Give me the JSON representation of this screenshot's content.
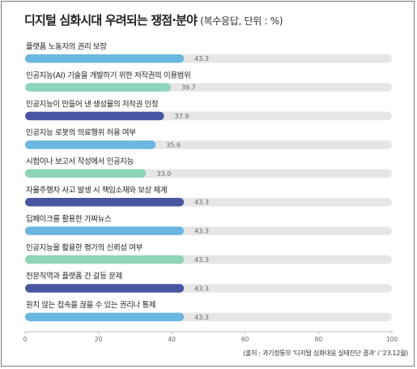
{
  "title": "디지털 심화시대 우려되는 쟁점·분야",
  "subtitle": "(복수응답, 단위 : %)",
  "source": "(출처 : 과기정통부 '디지털 심화대응 실태진단 결과' / '23.12월)",
  "colors": {
    "track": "#e6e6e6",
    "blue": "#6ab7e0",
    "green": "#8dd4b8",
    "navy": "#4a55a2"
  },
  "chart_data": {
    "type": "bar",
    "orientation": "horizontal",
    "title": "디지털 심화시대 우려되는 쟁점·분야",
    "subtitle": "(복수응답, 단위 : %)",
    "xlim": [
      0,
      100
    ],
    "xticks": [
      0,
      20,
      40,
      60,
      80,
      100
    ],
    "categories": [
      "플랫폼 노동자의 권리 보장",
      "인공지능(AI) 기술을 개발하기 위한 저작권의 이용범위",
      "인공지능이 만들어 낸 생성물의 저작권 인정",
      "인공지능 로봇의 의료행위 허용 여부",
      "시험이나 보고서 작성에서 인공지능",
      "자율주행차 사고 발생 시 책임소재와 보상 체계",
      "딥페이크를 활용한 가짜뉴스",
      "인공지능을 활용한 평가의 신뢰성 여부",
      "전문직역과 플랫폼 간 갈등 문제",
      "원치 않는 접속을 끊을 수 있는 권리나 통제"
    ],
    "values": [
      43.3,
      39.7,
      37.9,
      35.6,
      33.0,
      43.3,
      43.3,
      43.3,
      43.3,
      43.3
    ],
    "value_labels": [
      "43.3",
      "39.7",
      "37.9",
      "35.6",
      "33.0",
      "43.3",
      "43.3",
      "43.3",
      "43.3",
      "43.3"
    ],
    "bar_colors": [
      "blue",
      "green",
      "navy",
      "blue",
      "green",
      "navy",
      "blue",
      "green",
      "navy",
      "blue"
    ],
    "grid": false,
    "legend": false
  }
}
